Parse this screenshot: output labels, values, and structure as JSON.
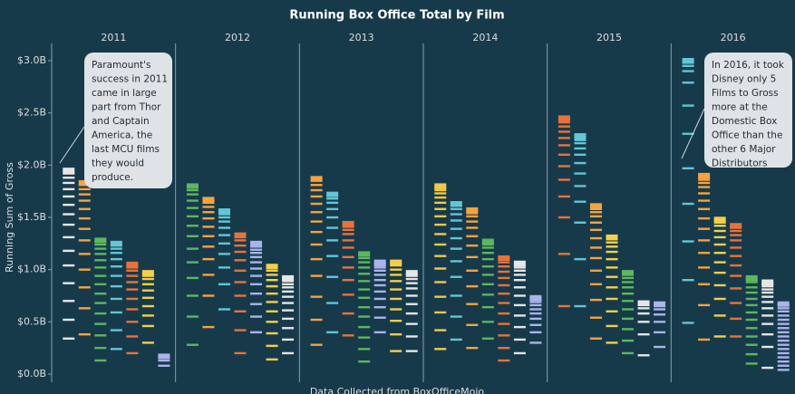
{
  "chart_data": {
    "type": "tick-strip",
    "title": "Running Box Office Total by Film",
    "y_label": "Running Sum of Gross",
    "source": "Data Collected from BoxOfficeMojo",
    "ylim": [
      0,
      3.1
    ],
    "yticks": [
      {
        "value": 0,
        "label": "$0.0B"
      },
      {
        "value": 0.5,
        "label": "$0.5B"
      },
      {
        "value": 1,
        "label": "$1.0B"
      },
      {
        "value": 1.5,
        "label": "$1.5B"
      },
      {
        "value": 2,
        "label": "$2.0B"
      },
      {
        "value": 2.5,
        "label": "$2.5B"
      },
      {
        "value": 3,
        "label": "$3.0B"
      }
    ],
    "facets": [
      {
        "label": "2011",
        "columns": [
          {
            "color": "#e6e6e6",
            "values": [
              0.34,
              0.18,
              0.18,
              0.17,
              0.17,
              0.14,
              0.13,
              0.12,
              0.1,
              0.09,
              0.08,
              0.07,
              0.06,
              0.05,
              0.04,
              0.03
            ]
          },
          {
            "color": "#f6a340",
            "values": [
              0.38,
              0.25,
              0.2,
              0.17,
              0.15,
              0.13,
              0.11,
              0.1,
              0.09,
              0.08,
              0.06,
              0.05,
              0.04,
              0.02
            ]
          },
          {
            "color": "#5cb85c",
            "values": [
              0.13,
              0.12,
              0.12,
              0.11,
              0.1,
              0.1,
              0.09,
              0.09,
              0.08,
              0.08,
              0.07,
              0.06,
              0.05,
              0.04,
              0.03,
              0.01
            ]
          },
          {
            "color": "#62c6d6",
            "values": [
              0.24,
              0.18,
              0.17,
              0.13,
              0.12,
              0.1,
              0.09,
              0.07,
              0.06,
              0.04,
              0.03,
              0.02
            ]
          },
          {
            "color": "#e8733a",
            "values": [
              0.2,
              0.16,
              0.14,
              0.12,
              0.1,
              0.09,
              0.07,
              0.06,
              0.05,
              0.03,
              0.02,
              0.01
            ]
          },
          {
            "color": "#f3d04a",
            "values": [
              0.3,
              0.16,
              0.1,
              0.09,
              0.08,
              0.07,
              0.06,
              0.05,
              0.03,
              0.02,
              0.01
            ]
          },
          {
            "color": "#aab4ea",
            "values": [
              0.08,
              0.05,
              0.03,
              0.01
            ]
          }
        ]
      },
      {
        "label": "2012",
        "columns": [
          {
            "color": "#5cb85c",
            "values": [
              0.28,
              0.27,
              0.2,
              0.17,
              0.15,
              0.13,
              0.12,
              0.1,
              0.09,
              0.08,
              0.07,
              0.06,
              0.04,
              0.03,
              0.01
            ]
          },
          {
            "color": "#f6a340",
            "values": [
              0.45,
              0.3,
              0.2,
              0.15,
              0.12,
              0.1,
              0.09,
              0.08,
              0.06,
              0.05,
              0.04,
              0.02,
              0.01
            ]
          },
          {
            "color": "#62c6d6",
            "values": [
              0.62,
              0.24,
              0.16,
              0.13,
              0.1,
              0.08,
              0.07,
              0.06,
              0.04,
              0.03,
              0.02,
              0.01
            ]
          },
          {
            "color": "#e8733a",
            "values": [
              0.2,
              0.22,
              0.18,
              0.15,
              0.13,
              0.11,
              0.1,
              0.08,
              0.06,
              0.05,
              0.03,
              0.02
            ]
          },
          {
            "color": "#aab4ea",
            "values": [
              0.4,
              0.15,
              0.12,
              0.1,
              0.09,
              0.08,
              0.07,
              0.06,
              0.05,
              0.04,
              0.03,
              0.03,
              0.02,
              0.01
            ]
          },
          {
            "color": "#f3d04a",
            "values": [
              0.14,
              0.13,
              0.12,
              0.11,
              0.1,
              0.09,
              0.08,
              0.07,
              0.06,
              0.05,
              0.04,
              0.03,
              0.01
            ]
          },
          {
            "color": "#e6e6e6",
            "values": [
              0.2,
              0.13,
              0.11,
              0.09,
              0.08,
              0.07,
              0.06,
              0.05,
              0.04,
              0.03,
              0.03,
              0.02,
              0.01
            ]
          }
        ]
      },
      {
        "label": "2013",
        "columns": [
          {
            "color": "#f6a340",
            "values": [
              0.28,
              0.24,
              0.22,
              0.2,
              0.16,
              0.14,
              0.12,
              0.1,
              0.09,
              0.08,
              0.07,
              0.06,
              0.05,
              0.04,
              0.02
            ]
          },
          {
            "color": "#62c6d6",
            "values": [
              0.4,
              0.28,
              0.25,
              0.2,
              0.15,
              0.12,
              0.1,
              0.08,
              0.06,
              0.04,
              0.03,
              0.01
            ]
          },
          {
            "color": "#e8733a",
            "values": [
              0.37,
              0.21,
              0.18,
              0.14,
              0.12,
              0.1,
              0.09,
              0.07,
              0.06,
              0.04,
              0.03,
              0.02,
              0.01
            ]
          },
          {
            "color": "#5cb85c",
            "values": [
              0.12,
              0.12,
              0.11,
              0.1,
              0.1,
              0.09,
              0.09,
              0.08,
              0.08,
              0.07,
              0.06,
              0.05,
              0.04,
              0.03,
              0.01
            ]
          },
          {
            "color": "#aab4ea",
            "values": [
              0.4,
              0.14,
              0.1,
              0.08,
              0.07,
              0.06,
              0.05,
              0.05,
              0.04,
              0.03,
              0.02,
              0.02,
              0.01
            ]
          },
          {
            "color": "#f3d04a",
            "values": [
              0.22,
              0.16,
              0.13,
              0.11,
              0.1,
              0.09,
              0.08,
              0.06,
              0.05,
              0.04,
              0.02,
              0.01
            ]
          },
          {
            "color": "#e6e6e6",
            "values": [
              0.22,
              0.14,
              0.12,
              0.1,
              0.09,
              0.08,
              0.07,
              0.05,
              0.04,
              0.03,
              0.02,
              0.01
            ]
          }
        ]
      },
      {
        "label": "2014",
        "columns": [
          {
            "color": "#f3c94a",
            "values": [
              0.24,
              0.18,
              0.17,
              0.15,
              0.14,
              0.13,
              0.12,
              0.11,
              0.1,
              0.09,
              0.08,
              0.07,
              0.06,
              0.05,
              0.04,
              0.03,
              0.02,
              0.02
            ]
          },
          {
            "color": "#62c6d6",
            "values": [
              0.33,
              0.22,
              0.2,
              0.18,
              0.15,
              0.12,
              0.1,
              0.09,
              0.08,
              0.06,
              0.05,
              0.03,
              0.02
            ]
          },
          {
            "color": "#f6a340",
            "values": [
              0.25,
              0.22,
              0.2,
              0.17,
              0.15,
              0.13,
              0.11,
              0.09,
              0.08,
              0.06,
              0.05,
              0.03,
              0.02,
              0.01
            ]
          },
          {
            "color": "#5cb85c",
            "values": [
              0.34,
              0.16,
              0.14,
              0.12,
              0.1,
              0.09,
              0.08,
              0.07,
              0.06,
              0.05,
              0.03,
              0.02,
              0.01
            ]
          },
          {
            "color": "#e8733a",
            "values": [
              0.13,
              0.12,
              0.12,
              0.11,
              0.1,
              0.1,
              0.09,
              0.08,
              0.07,
              0.06,
              0.05,
              0.04,
              0.03,
              0.01
            ]
          },
          {
            "color": "#e6e6e6",
            "values": [
              0.2,
              0.13,
              0.12,
              0.11,
              0.1,
              0.09,
              0.08,
              0.07,
              0.05,
              0.04,
              0.03,
              0.02,
              0.02
            ]
          },
          {
            "color": "#aab4ea",
            "values": [
              0.3,
              0.1,
              0.07,
              0.06,
              0.05,
              0.04,
              0.04,
              0.03,
              0.02,
              0.01,
              0.01
            ]
          }
        ]
      },
      {
        "label": "2015",
        "columns": [
          {
            "color": "#e8733a",
            "values": [
              0.65,
              0.5,
              0.35,
              0.2,
              0.16,
              0.13,
              0.11,
              0.09,
              0.07,
              0.06,
              0.05,
              0.04,
              0.02,
              0.01,
              0.01
            ]
          },
          {
            "color": "#62c6d6",
            "values": [
              0.65,
              0.45,
              0.35,
              0.2,
              0.15,
              0.12,
              0.1,
              0.08,
              0.06,
              0.05,
              0.03,
              0.02,
              0.01,
              0.01
            ]
          },
          {
            "color": "#f6a340",
            "values": [
              0.34,
              0.2,
              0.17,
              0.15,
              0.13,
              0.12,
              0.1,
              0.09,
              0.08,
              0.07,
              0.06,
              0.04,
              0.03,
              0.02,
              0.01
            ]
          },
          {
            "color": "#f3d04a",
            "values": [
              0.3,
              0.16,
              0.14,
              0.12,
              0.11,
              0.1,
              0.09,
              0.08,
              0.07,
              0.05,
              0.04,
              0.03,
              0.02
            ]
          },
          {
            "color": "#5cb85c",
            "values": [
              0.2,
              0.12,
              0.11,
              0.1,
              0.09,
              0.08,
              0.07,
              0.06,
              0.05,
              0.04,
              0.03,
              0.02
            ]
          },
          {
            "color": "#e6e6e6",
            "values": [
              0.18,
              0.2,
              0.12,
              0.08,
              0.05,
              0.03,
              0.02
            ]
          },
          {
            "color": "#aab4ea",
            "values": [
              0.26,
              0.14,
              0.1,
              0.07,
              0.05,
              0.03,
              0.02
            ]
          }
        ]
      },
      {
        "label": "2016",
        "columns": [
          {
            "color": "#62c6d6",
            "values": [
              0.49,
              0.41,
              0.37,
              0.36,
              0.34,
              0.33,
              0.27,
              0.22,
              0.11,
              0.05,
              0.03,
              0.02
            ]
          },
          {
            "color": "#f6a340",
            "values": [
              0.33,
              0.33,
              0.2,
              0.16,
              0.14,
              0.12,
              0.11,
              0.1,
              0.09,
              0.08,
              0.07,
              0.06,
              0.04,
              0.03,
              0.02,
              0.02
            ]
          },
          {
            "color": "#f3d04a",
            "values": [
              0.36,
              0.2,
              0.16,
              0.13,
              0.12,
              0.1,
              0.09,
              0.08,
              0.07,
              0.06,
              0.05,
              0.03,
              0.02,
              0.01
            ]
          },
          {
            "color": "#e8733a",
            "values": [
              0.36,
              0.17,
              0.15,
              0.14,
              0.12,
              0.1,
              0.09,
              0.08,
              0.07,
              0.05,
              0.04,
              0.03,
              0.01,
              0.01
            ]
          },
          {
            "color": "#5cb85c",
            "values": [
              0.1,
              0.09,
              0.09,
              0.08,
              0.08,
              0.08,
              0.07,
              0.07,
              0.06,
              0.06,
              0.05,
              0.05,
              0.02,
              0.01,
              0.01
            ]
          },
          {
            "color": "#e6e6e6",
            "values": [
              0.06,
              0.2,
              0.12,
              0.1,
              0.08,
              0.07,
              0.06,
              0.05,
              0.04,
              0.03,
              0.03,
              0.02,
              0.01,
              0.01
            ]
          },
          {
            "color": "#aab4ea",
            "values": [
              0.04,
              0.04,
              0.04,
              0.04,
              0.04,
              0.04,
              0.04,
              0.04,
              0.04,
              0.04,
              0.04,
              0.04,
              0.04,
              0.04,
              0.04,
              0.03,
              0.03,
              0.01
            ]
          }
        ]
      }
    ],
    "annotations": [
      {
        "lines": [
          "Paramount's",
          "success in 2011",
          "came in large",
          "part from Thor",
          "and Captain",
          "America, the",
          "last MCU films",
          "they would",
          "produce."
        ]
      },
      {
        "lines": [
          "In 2016, it took",
          "Disney only 5",
          "Films to Gross",
          "more at the",
          "Domestic Box",
          "Office than the",
          "other 6 Major",
          "Distributors"
        ]
      }
    ]
  }
}
